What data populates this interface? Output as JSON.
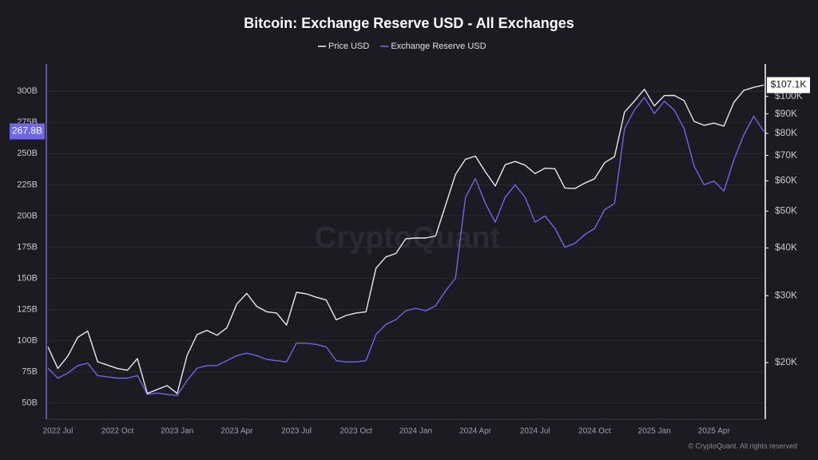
{
  "chart_data": {
    "type": "line",
    "title": "Bitcoin: Exchange Reserve USD - All Exchanges",
    "watermark": "CryptoQuant",
    "source": "© CryptoQuant. All rights reserved",
    "categories": [
      null,
      "2022 Jul",
      null,
      null,
      null,
      null,
      null,
      "2022 Oct",
      null,
      null,
      null,
      null,
      null,
      "2023 Jan",
      null,
      null,
      null,
      null,
      null,
      "2023 Apr",
      null,
      null,
      null,
      null,
      null,
      "2023 Jul",
      null,
      null,
      null,
      null,
      null,
      "2023 Oct",
      null,
      null,
      null,
      null,
      null,
      "2024 Jan",
      null,
      null,
      null,
      null,
      null,
      "2024 Apr",
      null,
      null,
      null,
      null,
      null,
      "2024 Jul",
      null,
      null,
      null,
      null,
      null,
      "2024 Oct",
      null,
      null,
      null,
      null,
      null,
      "2025 Jan",
      null,
      null,
      null,
      null,
      null,
      "2025 Apr",
      null,
      null,
      null,
      null,
      null
    ],
    "series": [
      {
        "name": "Price USD",
        "color": "#e8e8ec",
        "axis": "y2",
        "values": [
          22000,
          19300,
          20800,
          23300,
          24200,
          20100,
          19700,
          19300,
          19100,
          20500,
          16600,
          17000,
          17400,
          16600,
          20900,
          23700,
          24300,
          23600,
          24700,
          28500,
          30400,
          28100,
          27200,
          27000,
          25100,
          30600,
          30300,
          29700,
          29200,
          25900,
          26600,
          27000,
          27200,
          35400,
          37900,
          38700,
          42300,
          42500,
          42500,
          43000,
          51800,
          62400,
          68400,
          69700,
          63400,
          58200,
          66200,
          67500,
          66000,
          62700,
          64800,
          64600,
          57500,
          57300,
          59200,
          60800,
          67000,
          69500,
          91000,
          97200,
          104400,
          94400,
          100500,
          100600,
          97500,
          86000,
          84000,
          85100,
          83600,
          96500,
          103700,
          105700,
          107100
        ]
      },
      {
        "name": "Exchange Reserve USD",
        "color": "#6f66ea",
        "axis": "y",
        "values": [
          78,
          70,
          74,
          80,
          82,
          72,
          71,
          70,
          70,
          72,
          57,
          58,
          57,
          56,
          68,
          78,
          80,
          80,
          84,
          88,
          90,
          88,
          85,
          84,
          83,
          98,
          98,
          97,
          95,
          84,
          83,
          83,
          84,
          105,
          113,
          117,
          124,
          126,
          124,
          128,
          140,
          150,
          215,
          230,
          210,
          195,
          215,
          225,
          215,
          195,
          200,
          190,
          175,
          178,
          185,
          190,
          205,
          210,
          270,
          285,
          295,
          282,
          292,
          285,
          270,
          240,
          225,
          228,
          220,
          245,
          265,
          280,
          267.8
        ]
      }
    ],
    "ylim": [
      37,
      320
    ],
    "yticks": [
      {
        "value": 50,
        "label": "50B"
      },
      {
        "value": 75,
        "label": "75B"
      },
      {
        "value": 100,
        "label": "100B"
      },
      {
        "value": 125,
        "label": "125B"
      },
      {
        "value": 150,
        "label": "150B"
      },
      {
        "value": 175,
        "label": "175B"
      },
      {
        "value": 200,
        "label": "200B"
      },
      {
        "value": 225,
        "label": "225B"
      },
      {
        "value": 250,
        "label": "250B"
      },
      {
        "value": 275,
        "label": "275B"
      },
      {
        "value": 300,
        "label": "300B"
      }
    ],
    "y2lim": [
      14200,
      120000
    ],
    "y2scale": "log",
    "y2ticks": [
      {
        "value": 20000,
        "label": "$20K"
      },
      {
        "value": 30000,
        "label": "$30K"
      },
      {
        "value": 40000,
        "label": "$40K"
      },
      {
        "value": 50000,
        "label": "$50K"
      },
      {
        "value": 60000,
        "label": "$60K"
      },
      {
        "value": 70000,
        "label": "$70K"
      },
      {
        "value": 80000,
        "label": "$80K"
      },
      {
        "value": 90000,
        "label": "$90K"
      },
      {
        "value": 100000,
        "label": "$100K"
      }
    ],
    "annotations": [
      {
        "value": 267.8,
        "label": "267.8B",
        "axis": "y"
      },
      {
        "value": 107100,
        "label": "$107.1K",
        "axis": "y2"
      }
    ],
    "grid": true
  }
}
